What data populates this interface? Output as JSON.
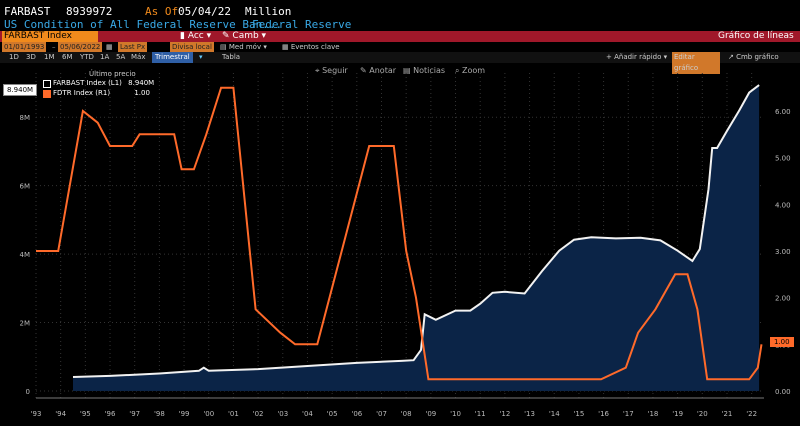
{
  "header": {
    "ticker": "FARBAST",
    "value": "8939972",
    "as_of_label": "As Of",
    "as_of_date": "05/04/22",
    "unit": "Million",
    "description": "US Condition of All Federal Reserve Ban...",
    "source": "Federal Reserve"
  },
  "toolbar": {
    "security_field": "FARBAST Index",
    "actions_label": "Acc",
    "change_label": "Camb",
    "chart_title": "Gráfico de líneas"
  },
  "controls": {
    "start_date": "01/01/1993",
    "end_date": "05/06/2022",
    "price_type": "Last Px",
    "currency": "Divisa local",
    "measure": "Med móv",
    "events": "Eventos clave"
  },
  "tabs": {
    "periods": [
      "1D",
      "3D",
      "1M",
      "6M",
      "YTD",
      "1A",
      "5A",
      "Máx"
    ],
    "frequency": "Trimestral",
    "table_label": "Tabla",
    "quick_add": "Añadir rápido",
    "edit": "Editar gráfico",
    "settings": "Cmb gráfico"
  },
  "chart_tools": {
    "follow": "Seguir",
    "annotate": "Anotar",
    "news": "Noticias",
    "zoom": "Zoom"
  },
  "legend": {
    "title": "Último precio",
    "series1_name": "FARBAST Index",
    "series1_axis": "(L1)",
    "series1_value": "8.940M",
    "series2_name": "FDTR Index",
    "series2_axis": "(R1)",
    "series2_value": "1.00"
  },
  "badges": {
    "left": "8.940M",
    "right": "1.00"
  },
  "colors": {
    "area_fill": "#0b2447",
    "series1_line": "#f2f2f2",
    "series2_line": "#ff6a2a",
    "header_red": "#a0182a",
    "accent_orange": "#f08a1c"
  },
  "chart_data": {
    "type": "line",
    "x_ticks": [
      "'93",
      "'94",
      "'95",
      "'96",
      "'97",
      "'98",
      "'99",
      "'00",
      "'01",
      "'02",
      "'03",
      "'04",
      "'05",
      "'06",
      "'07",
      "'08",
      "'09",
      "'10",
      "'11",
      "'12",
      "'13",
      "'14",
      "'15",
      "'16",
      "'17",
      "'18",
      "'19",
      "'20",
      "'21",
      "'22"
    ],
    "left_ticks": [
      "0",
      "2M",
      "4M",
      "6M",
      "8M"
    ],
    "right_ticks": [
      "0.00",
      "1.00",
      "2.00",
      "3.00",
      "4.00",
      "5.00",
      "6.00"
    ],
    "left_range": [
      0,
      9000000
    ],
    "right_range": [
      0,
      6.6
    ],
    "x_range": [
      1993,
      2022.5
    ],
    "series": [
      {
        "name": "FARBAST Index",
        "axis": "left",
        "style": "area",
        "points": [
          [
            1994.5,
            410000
          ],
          [
            1996,
            440000
          ],
          [
            1998,
            510000
          ],
          [
            1999.6,
            590000
          ],
          [
            1999.8,
            680000
          ],
          [
            2000.0,
            590000
          ],
          [
            2002,
            640000
          ],
          [
            2004,
            730000
          ],
          [
            2006,
            820000
          ],
          [
            2007.8,
            880000
          ],
          [
            2008.3,
            900000
          ],
          [
            2008.6,
            1200000
          ],
          [
            2008.75,
            2240000
          ],
          [
            2009.2,
            2080000
          ],
          [
            2010,
            2350000
          ],
          [
            2010.6,
            2350000
          ],
          [
            2011,
            2550000
          ],
          [
            2011.5,
            2870000
          ],
          [
            2012,
            2900000
          ],
          [
            2012.8,
            2850000
          ],
          [
            2013.5,
            3500000
          ],
          [
            2014.2,
            4100000
          ],
          [
            2014.8,
            4420000
          ],
          [
            2015.5,
            4490000
          ],
          [
            2016.5,
            4460000
          ],
          [
            2017.5,
            4480000
          ],
          [
            2018.3,
            4400000
          ],
          [
            2019,
            4100000
          ],
          [
            2019.6,
            3800000
          ],
          [
            2019.9,
            4150000
          ],
          [
            2020.25,
            5900000
          ],
          [
            2020.4,
            7100000
          ],
          [
            2020.6,
            7100000
          ],
          [
            2021,
            7600000
          ],
          [
            2021.5,
            8200000
          ],
          [
            2021.9,
            8720000
          ],
          [
            2022.3,
            8940000
          ]
        ]
      },
      {
        "name": "FDTR Index",
        "axis": "right",
        "points": [
          [
            1993,
            3.0
          ],
          [
            1993.9,
            3.0
          ],
          [
            1994.9,
            6.0
          ],
          [
            1995.5,
            5.75
          ],
          [
            1996,
            5.25
          ],
          [
            1996.9,
            5.25
          ],
          [
            1997.2,
            5.5
          ],
          [
            1998.6,
            5.5
          ],
          [
            1998.9,
            4.75
          ],
          [
            1999.4,
            4.75
          ],
          [
            1999.9,
            5.5
          ],
          [
            2000.5,
            6.5
          ],
          [
            2001.0,
            6.5
          ],
          [
            2001.9,
            1.75
          ],
          [
            2002.9,
            1.25
          ],
          [
            2003.5,
            1.0
          ],
          [
            2004.4,
            1.0
          ],
          [
            2006.5,
            5.25
          ],
          [
            2007.5,
            5.25
          ],
          [
            2008.0,
            3.0
          ],
          [
            2008.4,
            2.0
          ],
          [
            2008.9,
            0.25
          ],
          [
            2015.9,
            0.25
          ],
          [
            2016.9,
            0.5
          ],
          [
            2017.4,
            1.25
          ],
          [
            2018.1,
            1.75
          ],
          [
            2018.9,
            2.5
          ],
          [
            2019.4,
            2.5
          ],
          [
            2019.8,
            1.75
          ],
          [
            2020.2,
            0.25
          ],
          [
            2021.9,
            0.25
          ],
          [
            2022.25,
            0.5
          ],
          [
            2022.4,
            1.0
          ]
        ]
      }
    ],
    "grid": "dotted"
  }
}
